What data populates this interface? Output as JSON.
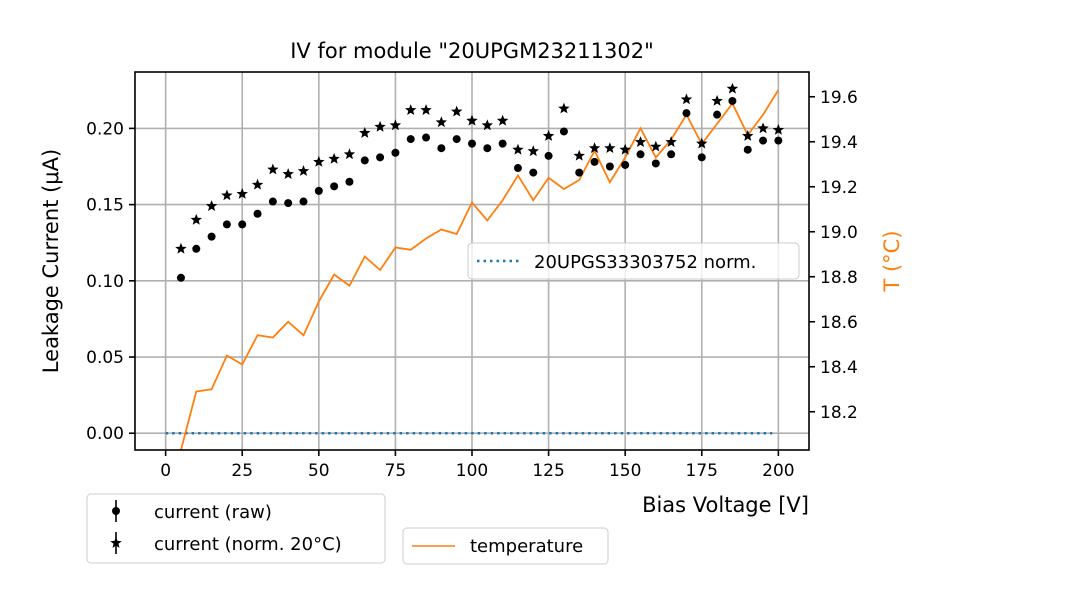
{
  "chart_data": {
    "type": "scatter",
    "title": "IV for module \"20UPGM23211302\"",
    "xlabel": "Bias Voltage [V]",
    "ylabel": "Leakage Current (μA)",
    "y2label": "T (°C)",
    "xlim": [
      -10,
      210
    ],
    "ylim": [
      -0.011,
      0.237
    ],
    "y2lim": [
      18.03,
      19.71
    ],
    "xticks": [
      0,
      25,
      50,
      75,
      100,
      125,
      150,
      175,
      200
    ],
    "xtick_labels": [
      "0",
      "25",
      "50",
      "75",
      "100",
      "125",
      "150",
      "175",
      "200"
    ],
    "yticks": [
      0.0,
      0.05,
      0.1,
      0.15,
      0.2
    ],
    "ytick_labels": [
      "0.00",
      "0.05",
      "0.10",
      "0.15",
      "0.20"
    ],
    "y2ticks": [
      18.2,
      18.4,
      18.6,
      18.8,
      19.0,
      19.2,
      19.4,
      19.6
    ],
    "y2tick_labels": [
      "18.2",
      "18.4",
      "18.6",
      "18.8",
      "19.0",
      "19.2",
      "19.4",
      "19.6"
    ],
    "grid": true,
    "x": [
      5,
      10,
      15,
      20,
      25,
      30,
      35,
      40,
      45,
      50,
      55,
      60,
      65,
      70,
      75,
      80,
      85,
      90,
      95,
      100,
      105,
      110,
      115,
      120,
      125,
      130,
      135,
      140,
      145,
      150,
      155,
      160,
      165,
      170,
      175,
      180,
      185,
      190,
      195,
      200
    ],
    "series": [
      {
        "name": "current (raw)",
        "axis": "left",
        "marker": "circle",
        "color": "#000000",
        "values": [
          0.102,
          0.121,
          0.129,
          0.137,
          0.137,
          0.144,
          0.152,
          0.151,
          0.152,
          0.159,
          0.162,
          0.165,
          0.179,
          0.181,
          0.184,
          0.193,
          0.194,
          0.187,
          0.193,
          0.19,
          0.187,
          0.19,
          0.174,
          0.171,
          0.182,
          0.198,
          0.171,
          0.178,
          0.175,
          0.176,
          0.183,
          0.177,
          0.183,
          0.21,
          0.181,
          0.209,
          0.218,
          0.186,
          0.192,
          0.192
        ]
      },
      {
        "name": "current (norm. 20°C)",
        "axis": "left",
        "marker": "star",
        "color": "#000000",
        "values": [
          0.121,
          0.14,
          0.149,
          0.156,
          0.157,
          0.163,
          0.173,
          0.17,
          0.172,
          0.178,
          0.18,
          0.183,
          0.197,
          0.201,
          0.202,
          0.212,
          0.212,
          0.204,
          0.211,
          0.205,
          0.202,
          0.205,
          0.186,
          0.185,
          0.195,
          0.213,
          0.182,
          0.187,
          0.187,
          0.186,
          0.191,
          0.188,
          0.191,
          0.219,
          0.19,
          0.218,
          0.226,
          0.195,
          0.2,
          0.199
        ]
      },
      {
        "name": "temperature",
        "axis": "right",
        "marker": "line",
        "color": "#ff7f0e",
        "values": [
          18.03,
          18.29,
          18.3,
          18.45,
          18.41,
          18.54,
          18.53,
          18.6,
          18.54,
          18.69,
          18.81,
          18.76,
          18.89,
          18.83,
          18.93,
          18.92,
          18.97,
          19.01,
          18.99,
          19.13,
          19.05,
          19.14,
          19.25,
          19.14,
          19.24,
          19.19,
          19.23,
          19.36,
          19.22,
          19.33,
          19.46,
          19.33,
          19.41,
          19.52,
          19.39,
          19.48,
          19.57,
          19.43,
          19.52,
          19.63
        ]
      },
      {
        "name": "20UPGS33303752 norm.",
        "axis": "left",
        "marker": "dotted-line",
        "color": "#1f77b4",
        "x": [
          0,
          198
        ],
        "values": [
          0.0,
          0.0
        ]
      }
    ],
    "legends": [
      {
        "position": "center-right",
        "entries": [
          "20UPGS33303752 norm."
        ]
      },
      {
        "position": "below-left",
        "entries": [
          "current (raw)",
          "current (norm. 20°C)"
        ]
      },
      {
        "position": "below-center",
        "entries": [
          "temperature"
        ]
      }
    ]
  }
}
